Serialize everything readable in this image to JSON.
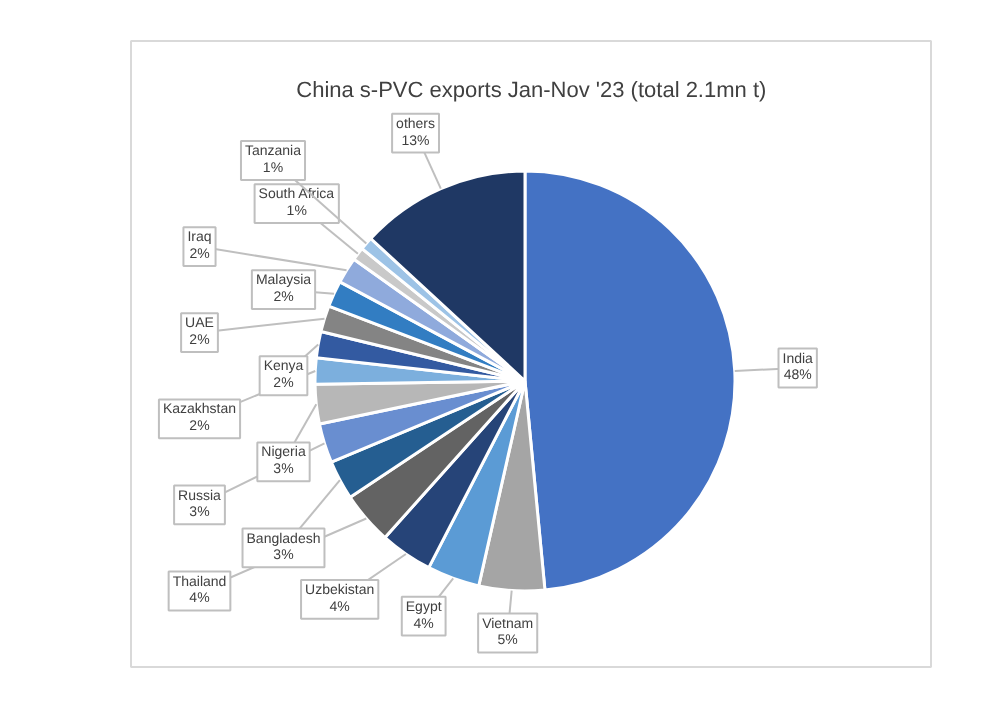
{
  "chart_data": {
    "type": "pie",
    "title": "China s-PVC exports Jan-Nov '23 (total 2.1mn t)",
    "categories": [
      "India",
      "Vietnam",
      "Egypt",
      "Uzbekistan",
      "Thailand",
      "Bangladesh",
      "Russia",
      "Nigeria",
      "Kazakhstan",
      "Kenya",
      "UAE",
      "Malaysia",
      "Iraq",
      "South Africa",
      "Tanzania",
      "others"
    ],
    "values": [
      48,
      5,
      4,
      4,
      4,
      3,
      3,
      3,
      2,
      2,
      2,
      2,
      2,
      1,
      1,
      13
    ],
    "value_labels": [
      "48%",
      "5%",
      "4%",
      "4%",
      "4%",
      "3%",
      "3%",
      "3%",
      "2%",
      "2%",
      "2%",
      "2%",
      "2%",
      "1%",
      "1%",
      "13%"
    ],
    "colors": [
      "#4472c4",
      "#a5a5a5",
      "#5b9bd5",
      "#264478",
      "#636363",
      "#255e91",
      "#698ed0",
      "#b7b7b7",
      "#7cafdd",
      "#335aa1",
      "#848484",
      "#327dc2",
      "#8faadc",
      "#c9c9c9",
      "#9dc3e6",
      "#1f3864"
    ]
  }
}
